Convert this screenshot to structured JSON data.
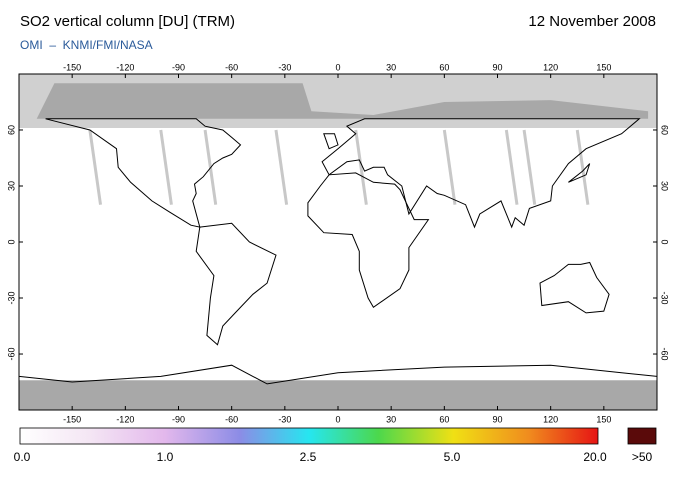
{
  "header": {
    "title": "SO2 vertical column [DU] (TRM)",
    "date": "12 November 2008",
    "subtitle": "OMI  –  KNMI/FMI/NASA"
  },
  "map": {
    "lon_ticks": [
      -150,
      -120,
      -90,
      -60,
      -30,
      0,
      30,
      60,
      90,
      120,
      150
    ],
    "lat_ticks": [
      60,
      30,
      0,
      -30,
      -60
    ]
  },
  "colorbar": {
    "labels": [
      "0.0",
      "1.0",
      "2.5",
      "5.0",
      "20.0",
      ">50"
    ]
  }
}
